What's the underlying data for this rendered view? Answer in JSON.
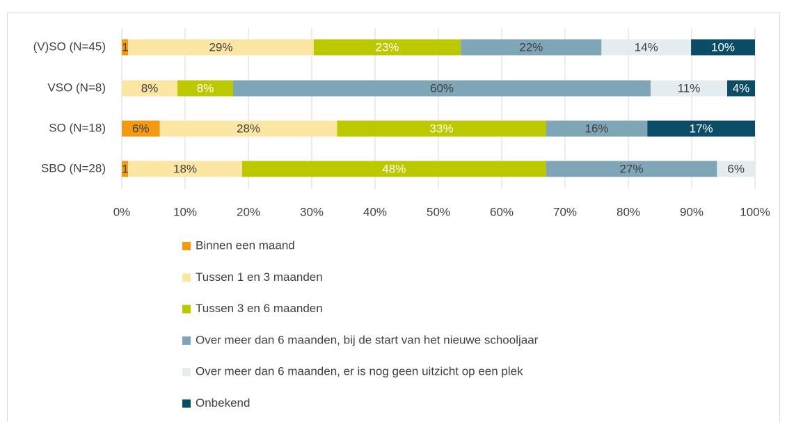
{
  "chart_data": {
    "type": "bar",
    "orientation": "horizontal",
    "stacked": "percent",
    "categories": [
      "(V)SO (N=45)",
      "VSO (N=8)",
      "SO (N=18)",
      "SBO (N=28)"
    ],
    "series": [
      {
        "name": "Binnen een maand",
        "color": "#F39A12",
        "label_color": "#404040",
        "values": [
          1,
          0,
          6,
          1
        ],
        "value_labels": [
          "1%",
          null,
          "6%",
          "1%"
        ]
      },
      {
        "name": "Tussen 1 en 3 maanden",
        "color": "#FCE6A4",
        "label_color": "#404040",
        "values": [
          29,
          8,
          28,
          18
        ],
        "value_labels": [
          "29%",
          "8%",
          "28%",
          "18%"
        ]
      },
      {
        "name": "Tussen 3 en 6 maanden",
        "color": "#BDC900",
        "label_color": "#ffffff",
        "values": [
          23,
          8,
          33,
          48
        ],
        "value_labels": [
          "23%",
          "8%",
          "33%",
          "48%"
        ]
      },
      {
        "name": "Over meer dan 6 maanden, bij de start van het nieuwe schooljaar",
        "color": "#7FA6B7",
        "label_color": "#404040",
        "values": [
          22,
          60,
          16,
          27
        ],
        "value_labels": [
          "22%",
          "60%",
          "16%",
          "27%"
        ]
      },
      {
        "name": "Over meer dan 6 maanden, er is nog geen uitzicht op een plek",
        "color": "#E5ECF0",
        "label_color": "#404040",
        "values": [
          14,
          11,
          0,
          6
        ],
        "value_labels": [
          "14%",
          "11%",
          null,
          "6%"
        ]
      },
      {
        "name": "Onbekend",
        "color": "#0B4D66",
        "label_color": "#ffffff",
        "values": [
          10,
          4,
          17,
          0
        ],
        "value_labels": [
          "10%",
          "4%",
          "17%",
          null
        ]
      }
    ],
    "xlim": [
      0,
      100
    ],
    "xticks": [
      {
        "value": 0,
        "label": "0%"
      },
      {
        "value": 10,
        "label": "10%"
      },
      {
        "value": 20,
        "label": "20%"
      },
      {
        "value": 30,
        "label": "30%"
      },
      {
        "value": 40,
        "label": "40%"
      },
      {
        "value": 50,
        "label": "50%"
      },
      {
        "value": 60,
        "label": "60%"
      },
      {
        "value": 70,
        "label": "70%"
      },
      {
        "value": 80,
        "label": "80%"
      },
      {
        "value": 90,
        "label": "90%"
      },
      {
        "value": 100,
        "label": "100%"
      }
    ],
    "grid": true,
    "legend": "bottom"
  }
}
